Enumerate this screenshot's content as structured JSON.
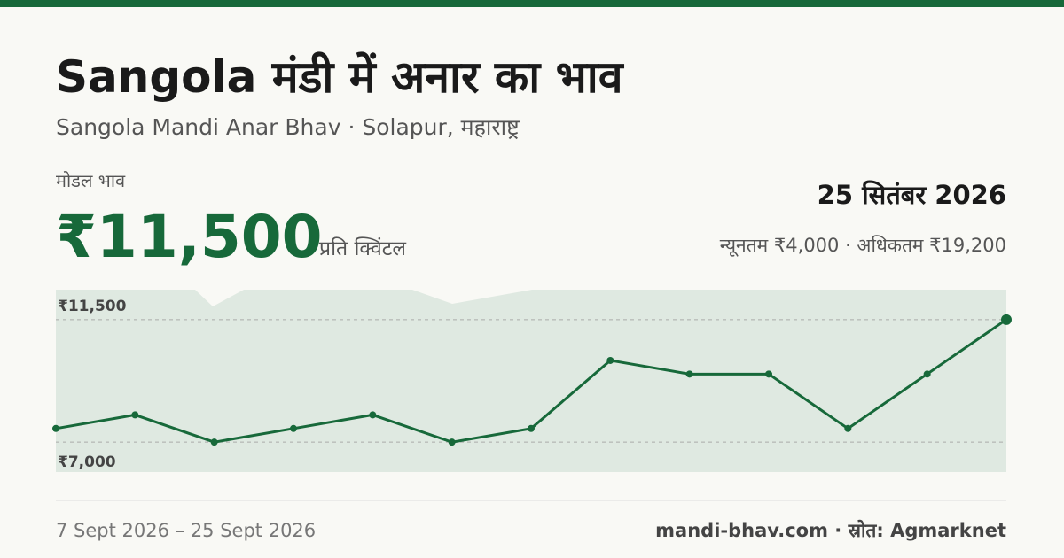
{
  "header": {
    "title": "Sangola मंडी में अनार का भाव",
    "subtitle": "Sangola Mandi Anar Bhav · Solapur, महाराष्ट्र"
  },
  "price": {
    "label": "मोडल भाव",
    "value": "₹11,500",
    "unit": "प्रति क्विंटल"
  },
  "summary": {
    "date": "25 सितंबर 2026",
    "range": "न्यूनतम ₹4,000 · अधिकतम ₹19,200"
  },
  "footer": {
    "period": "7 Sept 2026 – 25 Sept 2026",
    "source": "mandi-bhav.com · स्रोत: Agmarknet"
  },
  "chart_data": {
    "type": "line",
    "color": "#17693a",
    "values": [
      7500,
      8000,
      7000,
      7500,
      8000,
      7000,
      7500,
      10000,
      9500,
      9500,
      7500,
      9500,
      11500
    ],
    "ylim": [
      5900,
      12600
    ],
    "yticks": [
      {
        "value": 7000,
        "label": "₹7,000"
      },
      {
        "value": 11500,
        "label": "₹11,500"
      }
    ],
    "grid": true
  }
}
